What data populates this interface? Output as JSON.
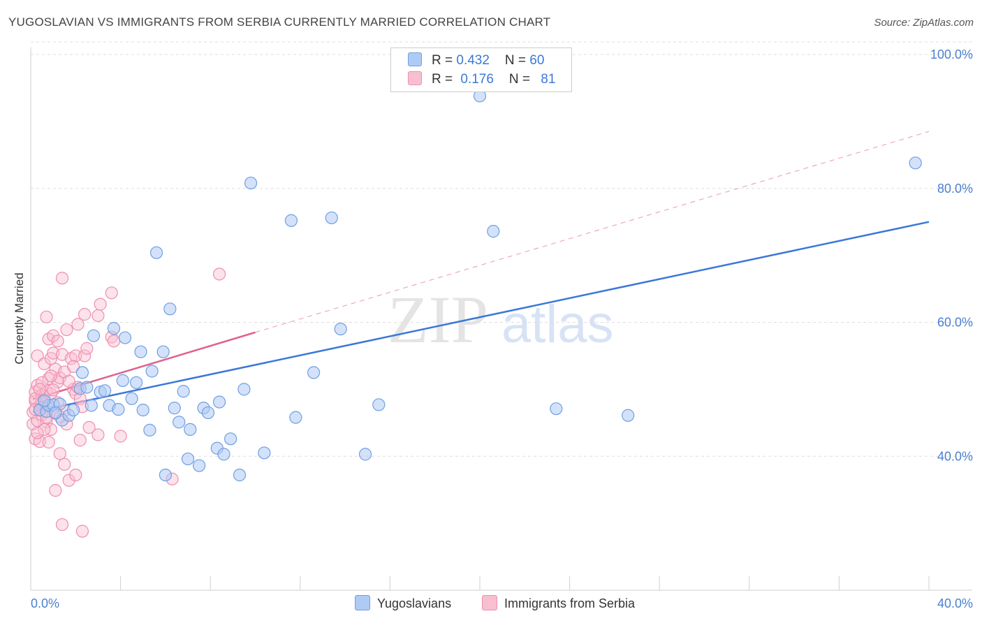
{
  "title": "YUGOSLAVIAN VS IMMIGRANTS FROM SERBIA CURRENTLY MARRIED CORRELATION CHART",
  "source": "Source: ZipAtlas.com",
  "watermark": {
    "zip": "ZIP",
    "atlas": "atlas"
  },
  "legend": {
    "rows": [
      {
        "r_label": "R = ",
        "r_value": "0.432",
        "n_label": "N = ",
        "n_value": "60"
      },
      {
        "r_label": "R = ",
        "r_value": "0.176",
        "n_label": "N = ",
        "n_value": "81"
      }
    ]
  },
  "bottom_legend": [
    "Yugoslavians",
    "Immigrants from Serbia"
  ],
  "colors": {
    "blue_fill": "#aecbf5",
    "blue_stroke": "#6f9fe0",
    "blue_line": "#3b78d8",
    "pink_fill": "#f8bfd1",
    "pink_stroke": "#ee8fb0",
    "pink_line": "#e0628e",
    "grid": "#dddddd",
    "tick_text": "#4a7fd0"
  },
  "chart_data": {
    "type": "scatter",
    "title": "YUGOSLAVIAN VS IMMIGRANTS FROM SERBIA CURRENTLY MARRIED CORRELATION CHART",
    "xlabel": "",
    "ylabel": "Currently Married",
    "xlim": [
      0,
      40
    ],
    "ylim": [
      20,
      100
    ],
    "x_ticks": [
      "0.0%",
      "40.0%"
    ],
    "y_ticks": [
      {
        "value": 40,
        "label": "40.0%"
      },
      {
        "value": 60,
        "label": "60.0%"
      },
      {
        "value": 80,
        "label": "80.0%"
      },
      {
        "value": 100,
        "label": "100.0%"
      }
    ],
    "grid": true,
    "series": [
      {
        "name": "Yugoslavians",
        "R": 0.432,
        "N": 60,
        "trend": {
          "x": [
            0.1,
            40
          ],
          "y": [
            46.6,
            75.0
          ],
          "style": "solid"
        },
        "points": [
          [
            0.4,
            46.9
          ],
          [
            0.7,
            46.7
          ],
          [
            0.8,
            47.6
          ],
          [
            1.0,
            47.7
          ],
          [
            1.3,
            47.8
          ],
          [
            1.4,
            45.4
          ],
          [
            1.7,
            46.1
          ],
          [
            1.9,
            46.9
          ],
          [
            2.2,
            50.1
          ],
          [
            2.3,
            52.5
          ],
          [
            2.5,
            50.3
          ],
          [
            2.7,
            47.6
          ],
          [
            2.8,
            58.0
          ],
          [
            3.1,
            49.6
          ],
          [
            3.3,
            49.8
          ],
          [
            3.5,
            47.6
          ],
          [
            3.7,
            59.1
          ],
          [
            3.9,
            47.0
          ],
          [
            4.1,
            51.3
          ],
          [
            4.2,
            57.7
          ],
          [
            4.5,
            48.6
          ],
          [
            4.7,
            51.0
          ],
          [
            4.9,
            55.6
          ],
          [
            5.0,
            46.9
          ],
          [
            5.3,
            43.9
          ],
          [
            5.4,
            52.7
          ],
          [
            5.6,
            70.4
          ],
          [
            5.9,
            55.6
          ],
          [
            6.0,
            37.2
          ],
          [
            6.2,
            62.0
          ],
          [
            6.4,
            47.2
          ],
          [
            6.6,
            45.1
          ],
          [
            6.8,
            49.7
          ],
          [
            7.0,
            39.6
          ],
          [
            7.1,
            44.0
          ],
          [
            7.5,
            38.6
          ],
          [
            7.7,
            47.2
          ],
          [
            7.9,
            46.5
          ],
          [
            8.3,
            41.2
          ],
          [
            8.4,
            48.1
          ],
          [
            8.6,
            40.3
          ],
          [
            8.9,
            42.6
          ],
          [
            9.3,
            37.2
          ],
          [
            9.5,
            50.0
          ],
          [
            9.8,
            80.8
          ],
          [
            10.4,
            40.5
          ],
          [
            11.6,
            75.2
          ],
          [
            11.8,
            45.8
          ],
          [
            12.6,
            52.5
          ],
          [
            13.4,
            75.6
          ],
          [
            13.8,
            59.0
          ],
          [
            14.9,
            40.3
          ],
          [
            15.5,
            47.7
          ],
          [
            20.0,
            93.8
          ],
          [
            20.6,
            73.6
          ],
          [
            23.4,
            47.1
          ],
          [
            26.6,
            46.1
          ],
          [
            39.4,
            83.8
          ],
          [
            0.6,
            48.3
          ],
          [
            1.1,
            46.5
          ]
        ]
      },
      {
        "name": "Immigrants from Serbia",
        "R": 0.176,
        "N": 81,
        "trend": {
          "x": [
            0.1,
            10
          ],
          "y": [
            48.5,
            58.5
          ],
          "style": "solid",
          "extended": {
            "x": [
              10,
              40
            ],
            "y": [
              58.5,
              88.5
            ],
            "style": "dashed"
          }
        },
        "points": [
          [
            0.1,
            46.6
          ],
          [
            0.1,
            44.8
          ],
          [
            0.2,
            42.6
          ],
          [
            0.2,
            48.2
          ],
          [
            0.2,
            49.6
          ],
          [
            0.3,
            45.3
          ],
          [
            0.3,
            50.6
          ],
          [
            0.3,
            55.0
          ],
          [
            0.4,
            46.9
          ],
          [
            0.4,
            47.6
          ],
          [
            0.4,
            42.2
          ],
          [
            0.5,
            47.9
          ],
          [
            0.5,
            49.1
          ],
          [
            0.5,
            46.2
          ],
          [
            0.6,
            48.9
          ],
          [
            0.6,
            53.8
          ],
          [
            0.7,
            49.8
          ],
          [
            0.7,
            60.8
          ],
          [
            0.7,
            45.1
          ],
          [
            0.8,
            57.5
          ],
          [
            0.8,
            42.1
          ],
          [
            0.8,
            51.6
          ],
          [
            0.9,
            44.0
          ],
          [
            0.9,
            54.6
          ],
          [
            0.9,
            49.3
          ],
          [
            1.0,
            55.4
          ],
          [
            1.0,
            58.0
          ],
          [
            1.1,
            53.0
          ],
          [
            1.1,
            46.4
          ],
          [
            1.1,
            34.9
          ],
          [
            1.2,
            51.1
          ],
          [
            1.2,
            57.2
          ],
          [
            1.3,
            51.7
          ],
          [
            1.3,
            40.4
          ],
          [
            1.4,
            29.8
          ],
          [
            1.4,
            55.2
          ],
          [
            1.4,
            66.6
          ],
          [
            1.5,
            46.8
          ],
          [
            1.5,
            52.6
          ],
          [
            1.5,
            38.8
          ],
          [
            1.6,
            44.8
          ],
          [
            1.7,
            36.4
          ],
          [
            1.8,
            54.6
          ],
          [
            1.9,
            50.0
          ],
          [
            2.0,
            55.0
          ],
          [
            2.0,
            37.2
          ],
          [
            2.0,
            49.4
          ],
          [
            2.1,
            50.3
          ],
          [
            2.1,
            59.7
          ],
          [
            2.2,
            48.6
          ],
          [
            2.2,
            42.4
          ],
          [
            2.3,
            28.8
          ],
          [
            2.3,
            47.4
          ],
          [
            2.4,
            55.0
          ],
          [
            2.4,
            61.2
          ],
          [
            2.5,
            56.1
          ],
          [
            3.0,
            43.2
          ],
          [
            3.0,
            61.0
          ],
          [
            3.1,
            62.7
          ],
          [
            3.6,
            64.4
          ],
          [
            3.6,
            57.8
          ],
          [
            3.7,
            57.2
          ],
          [
            4.0,
            43.0
          ],
          [
            6.3,
            36.6
          ],
          [
            8.4,
            67.2
          ],
          [
            0.2,
            48.6
          ],
          [
            0.6,
            44.0
          ],
          [
            0.9,
            52.0
          ],
          [
            1.2,
            48.0
          ],
          [
            1.6,
            58.9
          ],
          [
            0.3,
            43.5
          ],
          [
            0.5,
            51.0
          ],
          [
            0.8,
            47.2
          ],
          [
            1.0,
            49.9
          ],
          [
            1.3,
            45.9
          ],
          [
            0.4,
            50.0
          ],
          [
            0.7,
            45.8
          ],
          [
            1.7,
            51.2
          ],
          [
            2.6,
            44.3
          ],
          [
            0.2,
            47.0
          ],
          [
            1.9,
            53.4
          ]
        ]
      }
    ]
  }
}
